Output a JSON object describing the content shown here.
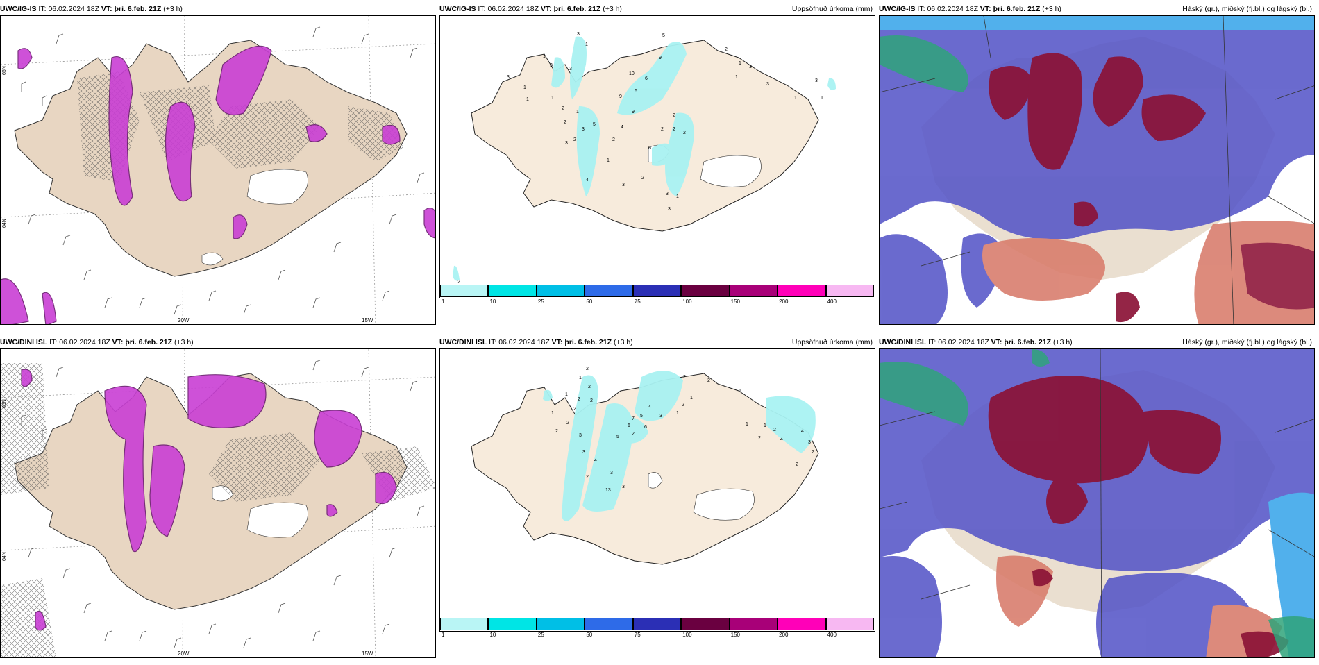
{
  "rows": [
    {
      "model": "UWC/IG-IS",
      "it_label": "IT:",
      "it_value": "06.02.2024 18Z",
      "vt_label": "VT:",
      "vt_value": "þri. 6.feb. 21Z",
      "lead": "(+3 h)",
      "lon_labels": [
        "20W",
        "15W"
      ],
      "lat_labels": [
        "65N",
        "64N"
      ]
    },
    {
      "model": "UWC/DINI ISL",
      "it_label": "IT:",
      "it_value": "06.02.2024 18Z",
      "vt_label": "VT:",
      "vt_value": "þri. 6.feb. 21Z",
      "lead": "(+3 h)",
      "lon_labels": [
        "20W",
        "15W"
      ],
      "lat_labels": [
        "65N",
        "64N"
      ]
    }
  ],
  "titles": {
    "precip": "Uppsöfnuð úrkoma (mm)",
    "cloud": "Háský (gr.), miðský (fj.bl.) og lágský (bl.)"
  },
  "colorbar": {
    "ticks": [
      "1",
      "10",
      "25",
      "50",
      "75",
      "100",
      "150",
      "200",
      "400"
    ],
    "colors": [
      "#b9f5f5",
      "#00e5e5",
      "#00bfe6",
      "#2e6be8",
      "#2b2fb5",
      "#6a0040",
      "#a80078",
      "#ff00b8",
      "#f7b8f2"
    ]
  },
  "colors": {
    "land": "#f7ebdc",
    "land_tan": "#e6d6c2",
    "precip_light": "#a9f2f2",
    "precip_purple": "#c93fd4",
    "cloud_high": "#8b1236",
    "cloud_mid": "#5656c8",
    "cloud_low": "#3aa6ea",
    "cloud_green": "#2fa37a"
  },
  "precip_labels": {
    "row0": [
      "3",
      "1",
      "1",
      "3",
      "3",
      "1",
      "1",
      "1",
      "1",
      "2",
      "1",
      "2",
      "1",
      "2",
      "3",
      "2",
      "4",
      "5",
      "2",
      "9",
      "6",
      "6",
      "10",
      "9",
      "4",
      "2",
      "2",
      "2",
      "2",
      "2",
      "3",
      "1",
      "3",
      "1",
      "2",
      "5",
      "2",
      "1",
      "1",
      "3",
      "2",
      "6",
      "3",
      "3",
      "1",
      "2"
    ],
    "row1": [
      "2",
      "1",
      "2",
      "2",
      "1",
      "2",
      "2",
      "1",
      "2",
      "1",
      "2",
      "2",
      "3",
      "3",
      "4",
      "5",
      "6",
      "7",
      "5",
      "6",
      "3",
      "4",
      "2",
      "1",
      "2",
      "3",
      "13",
      "3",
      "3",
      "1",
      "1",
      "2",
      "4",
      "3",
      "4",
      "4",
      "2",
      "2",
      "1",
      "2"
    ]
  }
}
